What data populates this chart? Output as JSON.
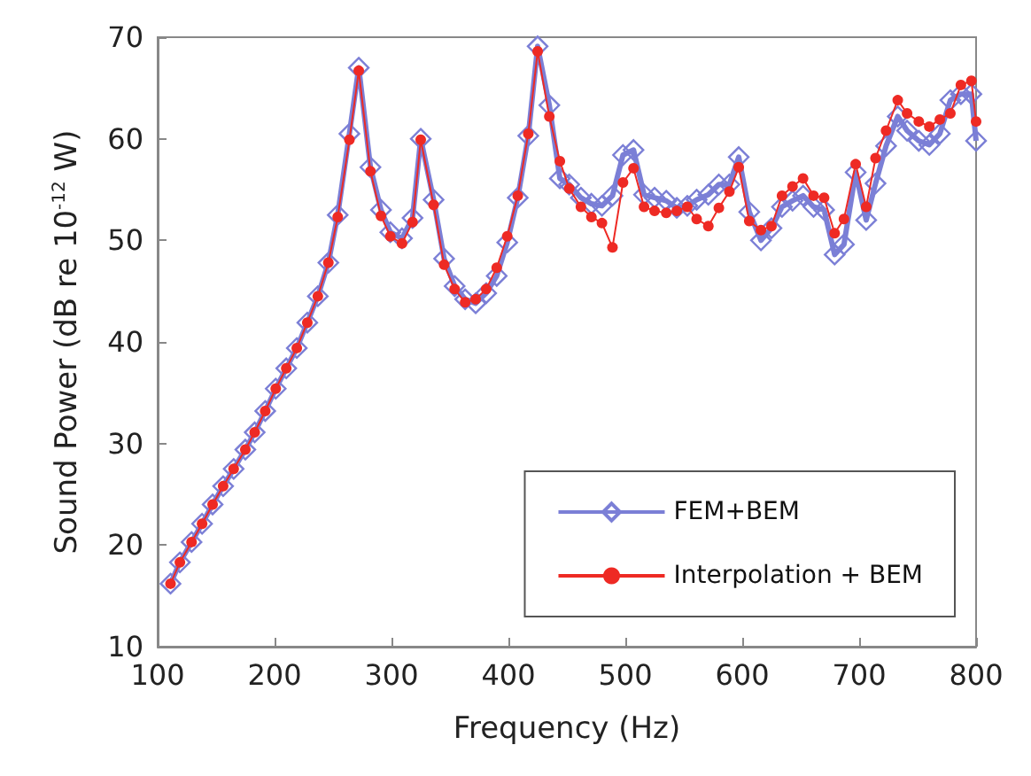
{
  "chart_data": {
    "type": "line",
    "xlabel": "Frequency (Hz)",
    "ylabel": "Sound Power (dB re 10$^{-12}$ W)",
    "x": [
      111,
      119,
      129,
      138,
      147,
      156,
      165,
      175,
      183,
      192,
      201,
      210,
      219,
      228,
      237,
      246,
      254,
      264,
      272,
      282,
      291,
      299,
      309,
      318,
      325,
      336,
      345,
      354,
      363,
      372,
      381,
      390,
      399,
      408,
      417,
      425,
      435,
      444,
      452,
      462,
      471,
      480,
      489,
      498,
      507,
      516,
      525,
      535,
      544,
      553,
      561,
      571,
      580,
      589,
      597,
      606,
      616,
      625,
      634,
      643,
      652,
      661,
      670,
      679,
      687,
      697,
      706,
      714,
      723,
      733,
      741,
      751,
      760,
      769,
      778,
      787,
      796,
      800
    ],
    "series": [
      {
        "name": "FEM+BEM",
        "color": "#7b7fd6",
        "marker": "diamond",
        "values": [
          16.2,
          18.3,
          20.3,
          22.1,
          24,
          25.8,
          27.5,
          29.4,
          31.1,
          33.2,
          35.4,
          37.4,
          39.4,
          41.9,
          44.5,
          47.8,
          52.5,
          60.5,
          67,
          57.2,
          53,
          50.8,
          50.2,
          52.2,
          60,
          54,
          48.2,
          45.5,
          44.2,
          43.8,
          44.8,
          46.5,
          49.8,
          54.2,
          60.3,
          69.1,
          63.3,
          56.1,
          55.5,
          54.2,
          53.6,
          53.4,
          54.4,
          58.4,
          58.9,
          54.5,
          54.2,
          53.9,
          53.2,
          53.4,
          54,
          54.5,
          55.5,
          55.5,
          58.2,
          52.8,
          50,
          51.2,
          53.3,
          53.9,
          54.4,
          53.3,
          53,
          48.6,
          49.6,
          56.7,
          52,
          55.6,
          59.3,
          62.2,
          60.8,
          59.8,
          59.4,
          60.5,
          63.8,
          64.4,
          64.4,
          59.8
        ]
      },
      {
        "name": "Interpolation + BEM",
        "color": "#ee2a24",
        "marker": "circle",
        "values": [
          16.2,
          18.3,
          20.3,
          22.1,
          24,
          25.8,
          27.5,
          29.4,
          31.1,
          33.2,
          35.4,
          37.4,
          39.4,
          41.9,
          44.5,
          47.8,
          52.3,
          59.9,
          66.7,
          56.8,
          52.4,
          50.4,
          49.7,
          51.8,
          59.9,
          53.5,
          47.6,
          45.2,
          43.9,
          44.2,
          45.2,
          47.3,
          50.4,
          54.4,
          60.5,
          68.6,
          62.2,
          57.8,
          55.1,
          53.3,
          52.3,
          51.7,
          49.3,
          55.7,
          57.1,
          53.3,
          52.9,
          52.7,
          52.9,
          53.3,
          52.1,
          51.4,
          53.2,
          54.8,
          57.2,
          51.9,
          51,
          51.4,
          54.4,
          55.3,
          56.1,
          54.4,
          54.2,
          50.7,
          52.1,
          57.5,
          53.3,
          58.1,
          60.8,
          63.8,
          62.5,
          61.7,
          61.2,
          61.9,
          62.5,
          65.3,
          65.7,
          61.7
        ]
      }
    ],
    "xlim": [
      100,
      800
    ],
    "xticks": [
      100,
      200,
      300,
      400,
      500,
      600,
      700,
      800
    ],
    "ylim": [
      10,
      70
    ],
    "yticks": [
      10,
      20,
      30,
      40,
      50,
      60,
      70
    ],
    "grid": false,
    "legend": "bottom right",
    "line_style": "solid"
  }
}
